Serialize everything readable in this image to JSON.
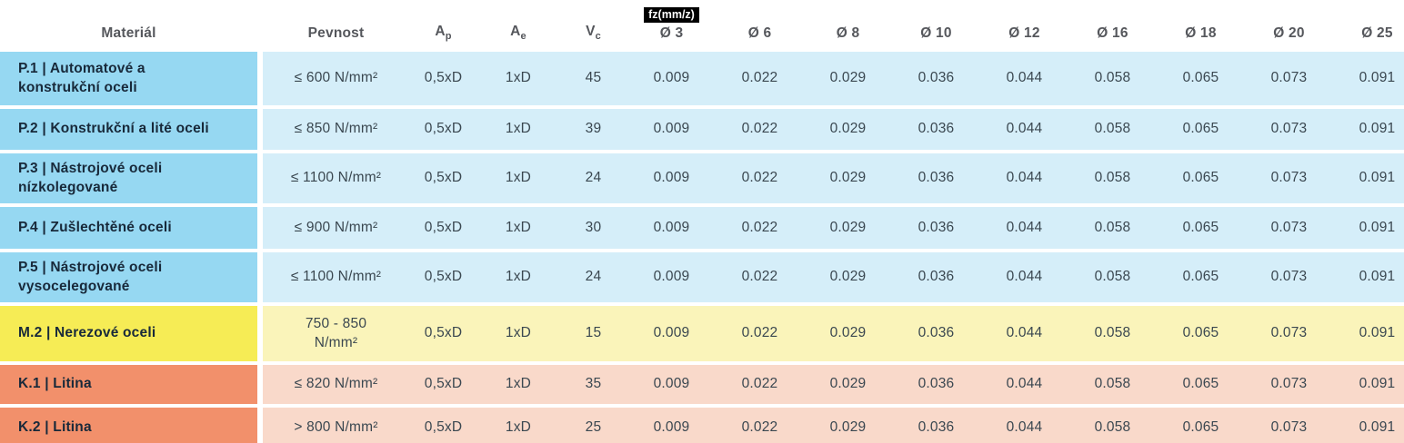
{
  "header": {
    "material": "Materiál",
    "pevnost": "Pevnost",
    "ap": {
      "base": "A",
      "sub": "p"
    },
    "ae": {
      "base": "A",
      "sub": "e"
    },
    "vc": {
      "base": "V",
      "sub": "c"
    },
    "fz_badge": "fz(mm/z)",
    "diameters": [
      "Ø 3",
      "Ø 6",
      "Ø 8",
      "Ø 10",
      "Ø 12",
      "Ø 16",
      "Ø 18",
      "Ø 20",
      "Ø 25"
    ]
  },
  "rows": [
    {
      "group": "P",
      "material": "P.1 | Automatové a\nkonstrukční oceli",
      "pevnost": "≤ 600 N/mm²",
      "ap": "0,5xD",
      "ae": "1xD",
      "vc": "45",
      "fz": [
        "0.009",
        "0.022",
        "0.029",
        "0.036",
        "0.044",
        "0.058",
        "0.065",
        "0.073",
        "0.091"
      ]
    },
    {
      "group": "P",
      "material": "P.2 | Konstrukční a lité oceli",
      "pevnost": "≤ 850 N/mm²",
      "ap": "0,5xD",
      "ae": "1xD",
      "vc": "39",
      "fz": [
        "0.009",
        "0.022",
        "0.029",
        "0.036",
        "0.044",
        "0.058",
        "0.065",
        "0.073",
        "0.091"
      ]
    },
    {
      "group": "P",
      "material": "P.3 | Nástrojové oceli\nnízkolegované",
      "pevnost": "≤ 1100 N/mm²",
      "ap": "0,5xD",
      "ae": "1xD",
      "vc": "24",
      "fz": [
        "0.009",
        "0.022",
        "0.029",
        "0.036",
        "0.044",
        "0.058",
        "0.065",
        "0.073",
        "0.091"
      ]
    },
    {
      "group": "P",
      "material": "P.4 | Zušlechtěné oceli",
      "pevnost": "≤ 900 N/mm²",
      "ap": "0,5xD",
      "ae": "1xD",
      "vc": "30",
      "fz": [
        "0.009",
        "0.022",
        "0.029",
        "0.036",
        "0.044",
        "0.058",
        "0.065",
        "0.073",
        "0.091"
      ]
    },
    {
      "group": "P",
      "material": "P.5 | Nástrojové oceli\nvysocelegované",
      "pevnost": "≤ 1100 N/mm²",
      "ap": "0,5xD",
      "ae": "1xD",
      "vc": "24",
      "fz": [
        "0.009",
        "0.022",
        "0.029",
        "0.036",
        "0.044",
        "0.058",
        "0.065",
        "0.073",
        "0.091"
      ]
    },
    {
      "group": "M",
      "material": "M.2 | Nerezové oceli",
      "pevnost": "750 - 850\nN/mm²",
      "ap": "0,5xD",
      "ae": "1xD",
      "vc": "15",
      "fz": [
        "0.009",
        "0.022",
        "0.029",
        "0.036",
        "0.044",
        "0.058",
        "0.065",
        "0.073",
        "0.091"
      ]
    },
    {
      "group": "K",
      "material": "K.1 | Litina",
      "pevnost": "≤ 820 N/mm²",
      "ap": "0,5xD",
      "ae": "1xD",
      "vc": "35",
      "fz": [
        "0.009",
        "0.022",
        "0.029",
        "0.036",
        "0.044",
        "0.058",
        "0.065",
        "0.073",
        "0.091"
      ]
    },
    {
      "group": "K",
      "material": "K.2 | Litina",
      "pevnost": "> 800 N/mm²",
      "ap": "0,5xD",
      "ae": "1xD",
      "vc": "25",
      "fz": [
        "0.009",
        "0.022",
        "0.029",
        "0.036",
        "0.044",
        "0.058",
        "0.065",
        "0.073",
        "0.091"
      ]
    }
  ],
  "colors": {
    "badge_bg": "#000000",
    "badge_fg": "#ffffff",
    "groups": {
      "P": {
        "strong": "#96d8f2",
        "light": "#d5eef9"
      },
      "M": {
        "strong": "#f6ec55",
        "light": "#faf4ba"
      },
      "K": {
        "strong": "#f2906b",
        "light": "#f9d9ca"
      }
    }
  }
}
